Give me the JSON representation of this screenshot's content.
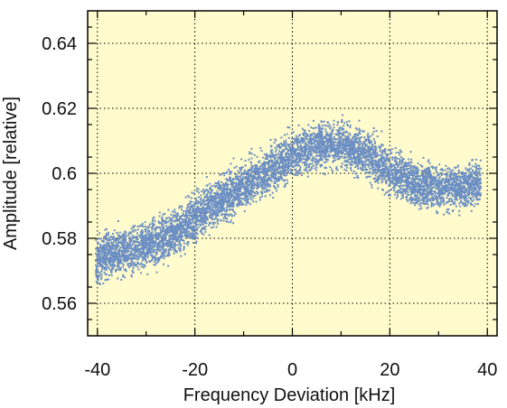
{
  "chart_data": {
    "type": "scatter",
    "title": "",
    "xlabel": "Frequency Deviation [kHz]",
    "ylabel": "Amplitude [relative]",
    "xlim": [
      -42,
      42
    ],
    "ylim": [
      0.55,
      0.65
    ],
    "xticks": [
      -40,
      -20,
      0,
      20,
      40
    ],
    "xtick_labels": [
      "-40",
      "-20",
      "0",
      "20",
      "40"
    ],
    "yticks": [
      0.56,
      0.58,
      0.6,
      0.62,
      0.64
    ],
    "ytick_labels": [
      "0.56",
      "0.58",
      "0.6",
      "0.62",
      "0.64"
    ],
    "grid": true,
    "legend": "none",
    "colors": {
      "background": "#fffbcc",
      "points": "#6b8ec4",
      "grid": "#000000"
    },
    "trend": {
      "description": "dense point cloud; mean amplitude vs frequency deviation",
      "x": [
        -40,
        -35,
        -30,
        -25,
        -20,
        -15,
        -10,
        -5,
        0,
        5,
        10,
        15,
        20,
        25,
        30,
        35,
        38
      ],
      "mean": [
        0.574,
        0.576,
        0.578,
        0.581,
        0.587,
        0.592,
        0.597,
        0.601,
        0.606,
        0.609,
        0.609,
        0.606,
        0.601,
        0.597,
        0.596,
        0.596,
        0.597
      ],
      "spread": 0.008
    }
  }
}
